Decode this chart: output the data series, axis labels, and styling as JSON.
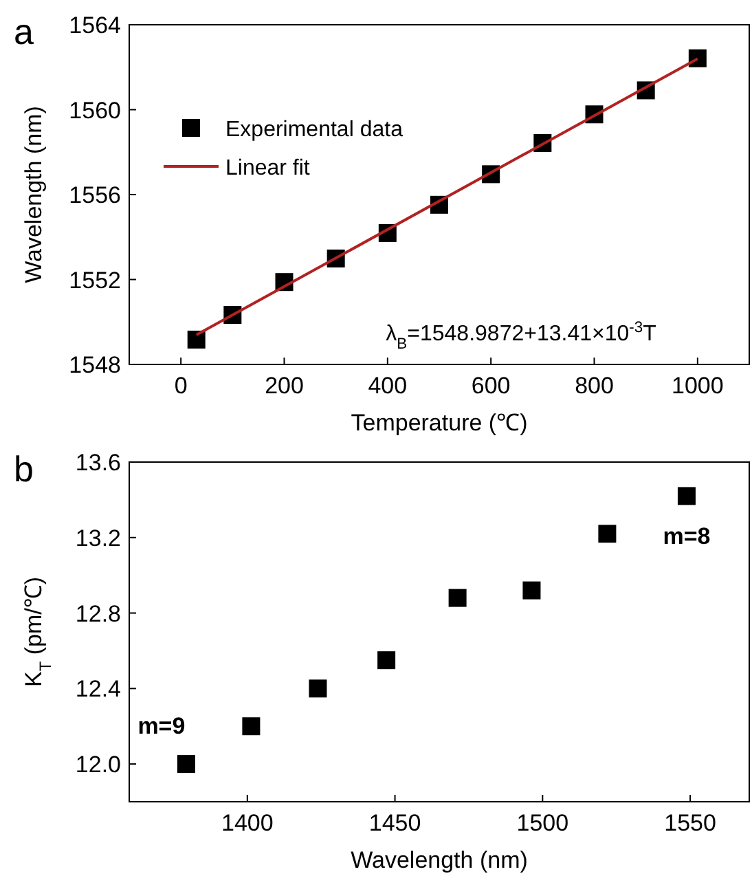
{
  "chart_data": [
    {
      "type": "scatter",
      "title": "a",
      "xlabel": "Temperature (℃)",
      "ylabel": "Wavelength (nm)",
      "xlim": [
        -100,
        1100
      ],
      "xticks": [
        0,
        200,
        400,
        600,
        800,
        1000
      ],
      "ylim": [
        1548,
        1564
      ],
      "yticks": [
        1548,
        1552,
        1556,
        1560,
        1564
      ],
      "legend": "top left",
      "series": [
        {
          "name": "Experimental data",
          "marker": "square",
          "color": "#000000",
          "x": [
            30,
            100,
            200,
            300,
            400,
            500,
            600,
            700,
            800,
            900,
            1000
          ],
          "values": [
            1549.17,
            1550.33,
            1551.88,
            1552.99,
            1554.19,
            1555.52,
            1556.96,
            1558.43,
            1559.78,
            1560.91,
            1562.42
          ]
        },
        {
          "name": "Linear fit",
          "type": "line",
          "marker": "none",
          "color": "#b22222",
          "x": [
            30,
            1000
          ],
          "values": [
            1549.39,
            1562.4
          ]
        }
      ],
      "annotations": [
        "λ$_{B}$=1548.9872+13.41×10$^{-3}$T"
      ]
    },
    {
      "type": "scatter",
      "title": "b",
      "xlabel": "Wavelength (nm)",
      "ylabel": "K$_{T}$ (pm/℃)",
      "xlim": [
        1360,
        1570
      ],
      "xticks": [
        1400,
        1450,
        1500,
        1550
      ],
      "ylim": [
        11.8,
        13.6
      ],
      "yticks": [
        {
          "value": 12,
          "label": "12.0"
        },
        12.4,
        12.8,
        13.2,
        13.6
      ],
      "marker": "square",
      "series": [
        {
          "color": "#000000",
          "x": [
            1379.3,
            1401.3,
            1423.9,
            1447.1,
            1471.2,
            1496.3,
            1521.9,
            1548.8
          ],
          "values": [
            12.0,
            12.2,
            12.4,
            12.55,
            12.88,
            12.92,
            13.22,
            13.42
          ]
        }
      ],
      "annotations": [
        {
          "text": "m=9",
          "x": 1379.3,
          "y": 12.0
        },
        {
          "text": "m=8",
          "x": 1548.8,
          "y": 13.42
        }
      ]
    }
  ]
}
